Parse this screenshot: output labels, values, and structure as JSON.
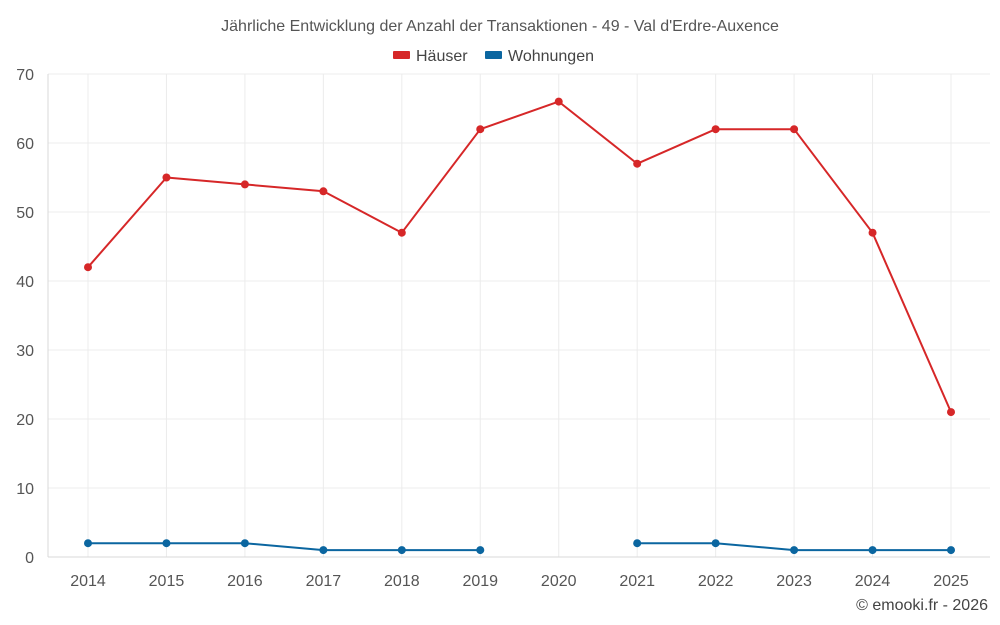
{
  "chart_data": {
    "type": "line",
    "title": "Jährliche Entwicklung der Anzahl der Transaktionen - 49 - Val d'Erdre-Auxence",
    "x": [
      "2014",
      "2015",
      "2016",
      "2017",
      "2018",
      "2019",
      "2020",
      "2021",
      "2022",
      "2023",
      "2024",
      "2025"
    ],
    "ylim": [
      0,
      70
    ],
    "yticks": [
      0,
      10,
      20,
      30,
      40,
      50,
      60,
      70
    ],
    "grid": true,
    "legend_position": "top-center",
    "series": [
      {
        "name": "Häuser",
        "color": "#d62728",
        "values": [
          42,
          55,
          54,
          53,
          47,
          62,
          66,
          57,
          62,
          62,
          47,
          21
        ]
      },
      {
        "name": "Wohnungen",
        "color": "#0b66a0",
        "values": [
          2,
          2,
          2,
          1,
          1,
          1,
          null,
          2,
          2,
          1,
          1,
          1
        ]
      }
    ]
  },
  "credit": "© emooki.fr - 2026"
}
